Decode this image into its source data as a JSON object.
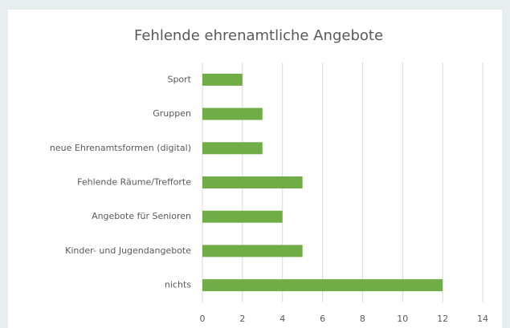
{
  "chart_data": {
    "type": "hbar",
    "title": "Fehlende ehrenamtliche Angebote",
    "categories": [
      "Sport",
      "Gruppen",
      "neue Ehrenamtsformen (digital)",
      "Fehlende Räume/Trefforte",
      "Angebote für Senioren",
      "Kinder- und Jugendangebote",
      "nichts"
    ],
    "values": [
      2,
      3,
      3,
      5,
      4,
      5,
      12
    ],
    "color": "#70ad47",
    "xlim": [
      0,
      14
    ],
    "xticks": [
      0,
      2,
      4,
      6,
      8,
      10,
      12,
      14
    ],
    "grid": true
  }
}
